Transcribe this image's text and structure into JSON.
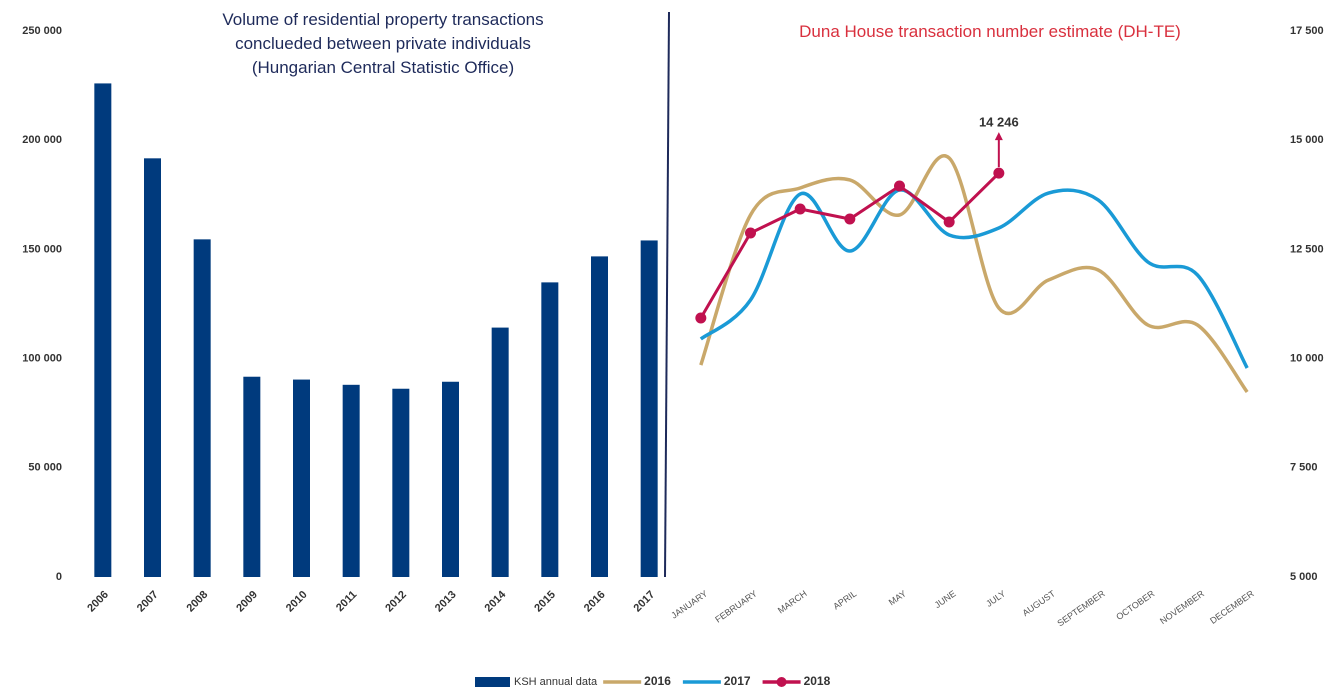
{
  "chart_data": [
    {
      "type": "bar",
      "title": "Volume of residential property transactions conclueded between private individuals (Hungarian Central Statistic Office)",
      "categories": [
        "2006",
        "2007",
        "2008",
        "2009",
        "2010",
        "2011",
        "2012",
        "2013",
        "2014",
        "2015",
        "2016",
        "2017"
      ],
      "series": [
        {
          "name": "KSH annual data",
          "color": "#003a7d",
          "values": [
            226000,
            191700,
            154600,
            91700,
            90400,
            88000,
            86200,
            89400,
            114200,
            134900,
            146800,
            154100
          ]
        }
      ],
      "ylim": [
        0,
        250000
      ],
      "yticks": [
        0,
        {
          "value": 50000,
          "label": "50 000"
        },
        {
          "value": 100000,
          "label": "100 000"
        },
        {
          "value": 150000,
          "label": "150 000"
        },
        {
          "value": 200000,
          "label": "200 000"
        },
        {
          "value": 250000,
          "label": "250 000"
        }
      ],
      "grid": false
    },
    {
      "type": "line",
      "title": "Duna House transaction number estimate (DH-TE)",
      "categories": [
        "JANUARY",
        "FEBRUARY",
        "MARCH",
        "APRIL",
        "MAY",
        "JUNE",
        "JULY",
        "AUGUST",
        "SEPTEMBER",
        "OCTOBER",
        "NOVEMBER",
        "DECEMBER"
      ],
      "series": [
        {
          "name": "2016",
          "color": "#c9a86a",
          "smooth": true,
          "values": [
            9853,
            13288,
            13906,
            14089,
            13288,
            14593,
            11158,
            11800,
            12028,
            10769,
            10769,
            9235
          ]
        },
        {
          "name": "2017",
          "color": "#1a9ad6",
          "smooth": true,
          "values": [
            10449,
            11341,
            13768,
            12463,
            13860,
            12830,
            12990,
            13791,
            13631,
            12212,
            11914,
            9785
          ]
        },
        {
          "name": "2018",
          "color": "#c0114f",
          "smooth": false,
          "markers": true,
          "values": [
            10929,
            12875,
            13425,
            13196,
            13951,
            13127,
            14246,
            null,
            null,
            null,
            null,
            null
          ]
        }
      ],
      "annotation": "14 246",
      "ylim": [
        5000,
        17500
      ],
      "yticks": [
        {
          "value": 5000,
          "label": "5 000"
        },
        {
          "value": 7500,
          "label": "7 500"
        },
        {
          "value": 10000,
          "label": "10 000"
        },
        {
          "value": 12500,
          "label": "12 500"
        },
        {
          "value": 15000,
          "label": "15 000"
        },
        {
          "value": 17500,
          "label": "17 500"
        }
      ],
      "grid": false
    }
  ]
}
